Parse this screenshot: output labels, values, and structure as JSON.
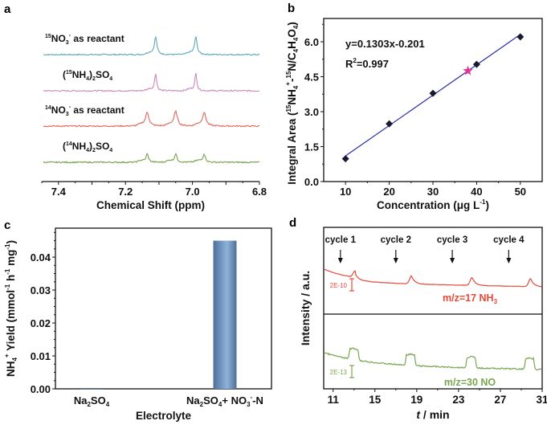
{
  "panel_labels": [
    "a",
    "b",
    "c",
    "d"
  ],
  "chart_data": [
    {
      "id": "a",
      "type": "line",
      "title": "",
      "xlabel": "Chemical Shift (ppm)",
      "ylabel": "",
      "xlim": [
        7.45,
        6.8
      ],
      "x_ticks": [
        "7.4",
        "7.2",
        "7.0",
        "6.8"
      ],
      "x_tick_values": [
        7.4,
        7.2,
        7.0,
        6.8
      ],
      "series": [
        {
          "name": "15NO3- as reactant",
          "label_parts": {
            "sup": "15",
            "main": "NO",
            "sub": "3",
            "sup2": "-",
            "rest": " as reactant"
          },
          "color": "#5fa9b8",
          "peaks_ppm": [
            7.11,
            6.99
          ],
          "peak_heights": [
            1.0,
            1.0
          ]
        },
        {
          "name": "(15NH4)2SO4",
          "label_parts": {
            "open": "(",
            "sup": "15",
            "main": "NH",
            "sub": "4",
            "close": ")",
            "sub2": "2",
            "rest": "SO",
            "sub3": "4"
          },
          "color": "#c98ab9",
          "peaks_ppm": [
            7.11,
            6.99
          ],
          "peak_heights": [
            1.0,
            1.0
          ]
        },
        {
          "name": "14NO3- as reactant",
          "label_parts": {
            "sup": "14",
            "main": "NO",
            "sub": "3",
            "sup2": "-",
            "rest": " as reactant"
          },
          "color": "#e0675a",
          "peaks_ppm": [
            7.135,
            7.05,
            6.965
          ],
          "peak_heights": [
            0.85,
            0.9,
            0.85
          ]
        },
        {
          "name": "(14NH4)2SO4",
          "label_parts": {
            "open": "(",
            "sup": "14",
            "main": "NH",
            "sub": "4",
            "close": ")",
            "sub2": "2",
            "rest": "SO",
            "sub3": "4"
          },
          "color": "#77a04a",
          "peaks_ppm": [
            7.135,
            7.05,
            6.965
          ],
          "peak_heights": [
            0.75,
            0.75,
            0.75
          ]
        }
      ]
    },
    {
      "id": "b",
      "type": "scatter",
      "title": "",
      "xlabel": "Concentration (μg L-1)",
      "xlabel_parts": {
        "main": "Concentration (",
        "mu": "μg L",
        "sup": "-1",
        "close": ")"
      },
      "ylabel": "Integral Area (15NH4+-15N/C4H4O4)",
      "xlim": [
        5,
        55
      ],
      "ylim": [
        0,
        7.0
      ],
      "x_ticks": [
        "10",
        "20",
        "30",
        "40",
        "50"
      ],
      "x_tick_values": [
        10,
        20,
        30,
        40,
        50
      ],
      "y_ticks": [
        "0.0",
        "1.5",
        "3.0",
        "4.5",
        "6.0"
      ],
      "y_tick_values": [
        0,
        1.5,
        3.0,
        4.5,
        6.0
      ],
      "series": [
        {
          "name": "standards",
          "marker": "diamond",
          "color": "#1a1a2e",
          "x": [
            10,
            20,
            30,
            40,
            50
          ],
          "y": [
            0.98,
            2.48,
            3.79,
            5.03,
            6.21
          ]
        },
        {
          "name": "sample",
          "marker": "star",
          "color": "#e0389a",
          "x": [
            38
          ],
          "y": [
            4.75
          ]
        }
      ],
      "fit": {
        "slope": 0.1303,
        "intercept": -0.201,
        "x_range": [
          10,
          50
        ],
        "color": "#2b2ba8"
      },
      "annotations": [
        "y=0.1303x-0.201",
        "R2=0.997"
      ]
    },
    {
      "id": "c",
      "type": "bar",
      "title": "",
      "xlabel": "Electrolyte",
      "ylabel": "NH4+ Yield (mmol-1 h-1 mg-1)",
      "categories": [
        "Na2SO4",
        "Na2SO4+ NO3--N"
      ],
      "values": [
        0.0,
        0.045
      ],
      "ylim": [
        0,
        0.0488
      ],
      "y_ticks": [
        "0.00",
        "0.01",
        "0.02",
        "0.03",
        "0.04"
      ],
      "y_tick_values": [
        0,
        0.01,
        0.02,
        0.03,
        0.04
      ],
      "bar_color": "#7fa3cf"
    },
    {
      "id": "d",
      "type": "line",
      "title": "",
      "xlabel": "t / min",
      "ylabel": "Intensity / a.u.",
      "xlim": [
        10.1,
        31
      ],
      "x_ticks": [
        "11",
        "15",
        "19",
        "23",
        "27",
        "31"
      ],
      "x_tick_values": [
        11,
        15,
        19,
        23,
        27,
        31
      ],
      "cycle_labels": [
        "cycle 1",
        "cycle 2",
        "cycle 3",
        "cycle 4"
      ],
      "cycle_times": [
        11.7,
        17.0,
        22.4,
        27.8
      ],
      "series": [
        {
          "name": "m/z=17 NH3",
          "label_main": "m/z=17 NH",
          "label_sub": "3",
          "color": "#e8483a",
          "scale_bar": "2E-10",
          "peak_times": [
            13.1,
            18.5,
            24.3,
            29.9
          ],
          "panel": "top"
        },
        {
          "name": "m/z=30 NO",
          "label_main": "m/z=30 NO",
          "label_sub": "",
          "color": "#7aa552",
          "scale_bar": "2E-13",
          "peak_times": [
            13.0,
            18.4,
            24.2,
            29.8
          ],
          "panel": "bottom"
        }
      ]
    }
  ]
}
